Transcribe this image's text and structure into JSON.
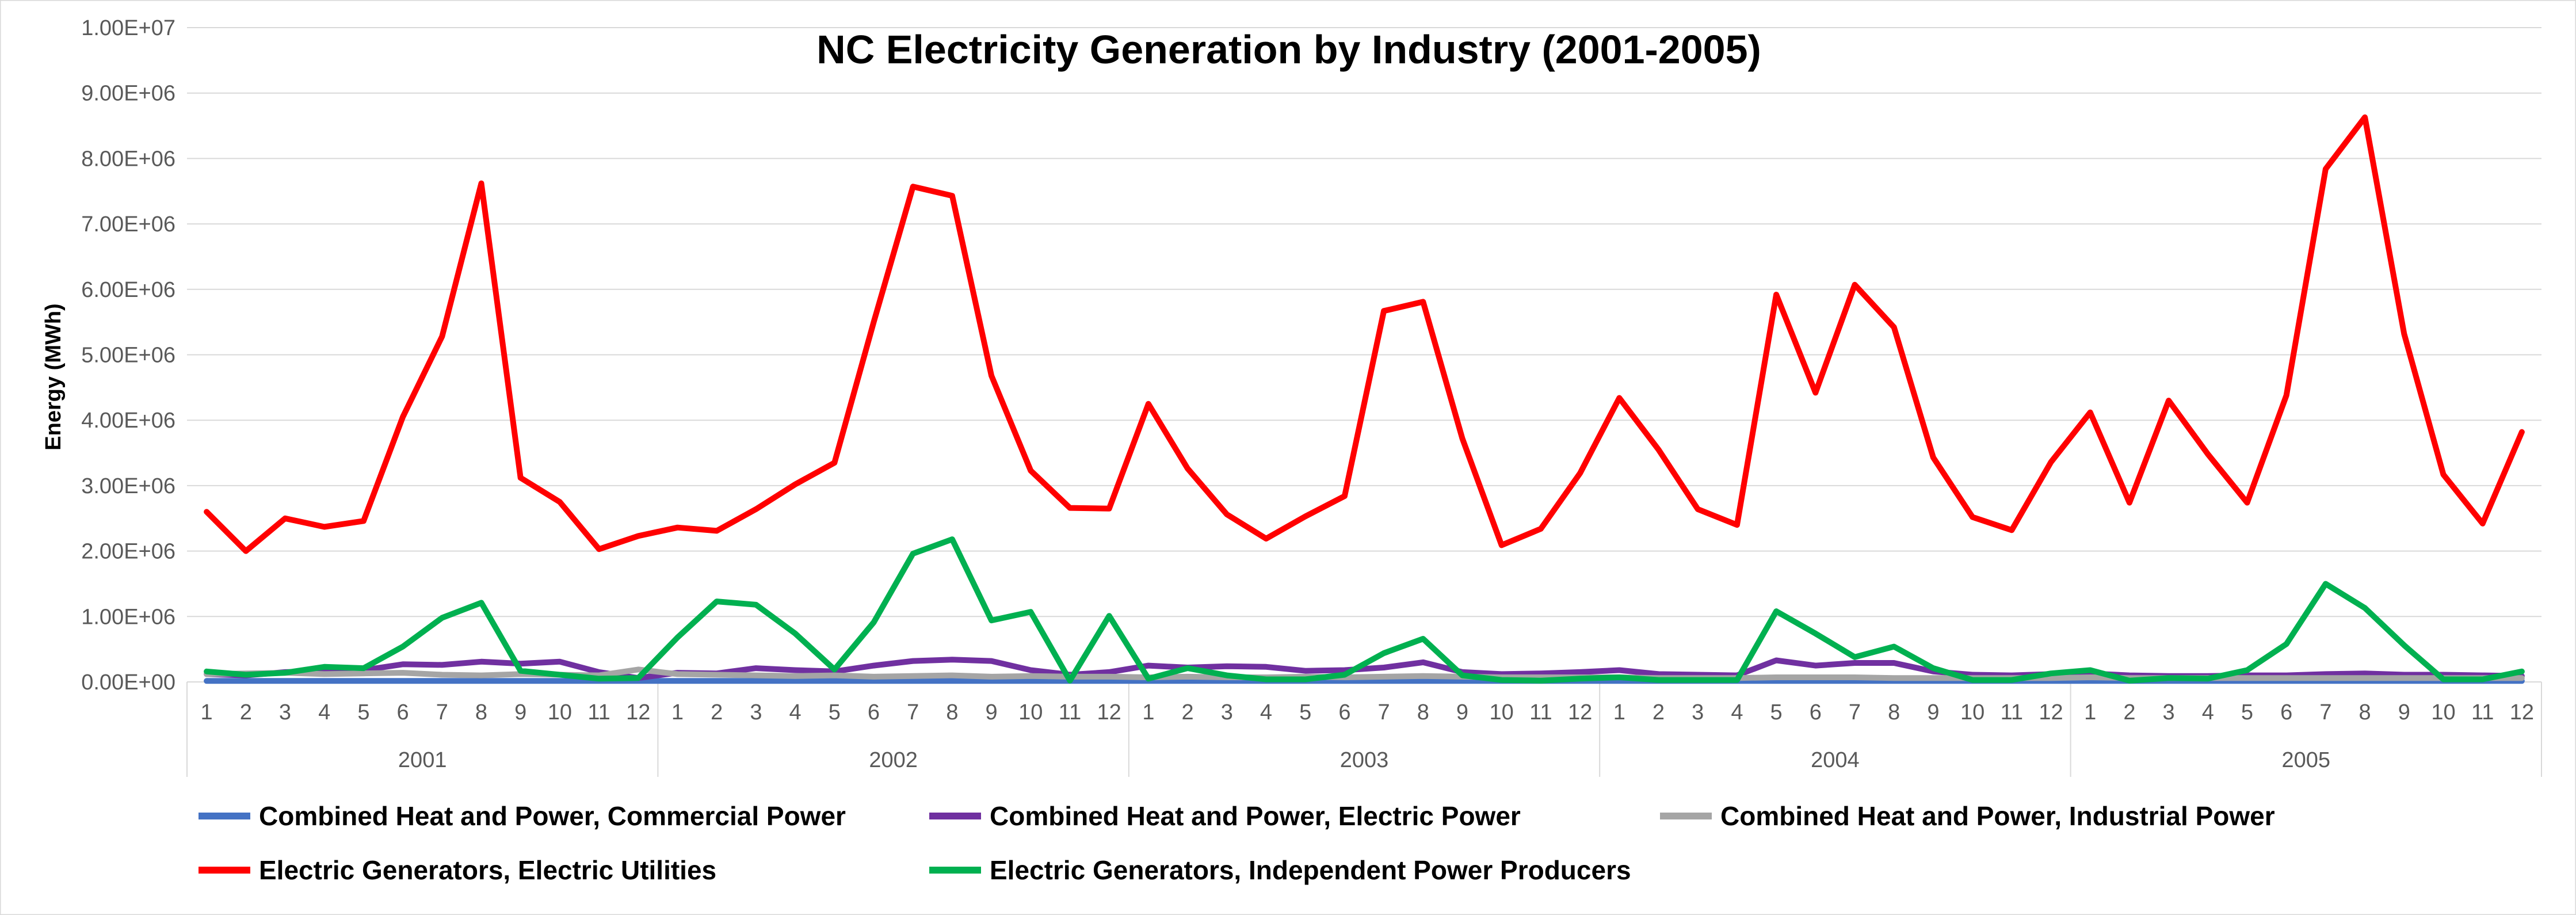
{
  "chart_data": {
    "type": "line",
    "title": "NC Electricity Generation by Industry (2001-2005)",
    "xlabel": "",
    "ylabel": "Energy (MWh)",
    "ylim": [
      0,
      10000000
    ],
    "yticks": [
      0,
      1000000,
      2000000,
      3000000,
      4000000,
      5000000,
      6000000,
      7000000,
      8000000,
      9000000,
      10000000
    ],
    "ytick_labels": [
      "0.00E+00",
      "1.00E+06",
      "2.00E+06",
      "3.00E+06",
      "4.00E+06",
      "5.00E+06",
      "6.00E+06",
      "7.00E+06",
      "8.00E+06",
      "9.00E+06",
      "1.00E+07"
    ],
    "years": [
      "2001",
      "2002",
      "2003",
      "2004",
      "2005"
    ],
    "months": [
      "1",
      "2",
      "3",
      "4",
      "5",
      "6",
      "7",
      "8",
      "9",
      "10",
      "11",
      "12"
    ],
    "grid": true,
    "legend_position": "bottom",
    "series": [
      {
        "name": "Combined Heat and Power, Commercial Power",
        "color": "#4472C4",
        "values": [
          15000,
          15000,
          15000,
          15000,
          15000,
          15000,
          15000,
          15000,
          15000,
          15000,
          15000,
          15000,
          15000,
          15000,
          15000,
          15000,
          15000,
          15000,
          15000,
          15000,
          15000,
          15000,
          15000,
          15000,
          15000,
          15000,
          15000,
          15000,
          15000,
          15000,
          15000,
          15000,
          15000,
          15000,
          15000,
          15000,
          15000,
          15000,
          15000,
          15000,
          15000,
          15000,
          15000,
          15000,
          15000,
          15000,
          15000,
          15000,
          15000,
          15000,
          15000,
          15000,
          15000,
          15000,
          15000,
          15000,
          15000,
          15000,
          15000,
          15000
        ]
      },
      {
        "name": "Combined Heat and Power, Electric Power",
        "color": "#7030A0",
        "values": [
          120000,
          100000,
          150000,
          160000,
          180000,
          270000,
          260000,
          310000,
          280000,
          310000,
          150000,
          60000,
          140000,
          130000,
          210000,
          180000,
          160000,
          250000,
          320000,
          340000,
          320000,
          180000,
          110000,
          150000,
          250000,
          220000,
          240000,
          230000,
          170000,
          180000,
          220000,
          300000,
          150000,
          120000,
          130000,
          150000,
          180000,
          120000,
          110000,
          100000,
          330000,
          250000,
          290000,
          290000,
          160000,
          110000,
          100000,
          120000,
          130000,
          100000,
          90000,
          90000,
          100000,
          100000,
          120000,
          130000,
          110000,
          110000,
          100000,
          90000
        ]
      },
      {
        "name": "Combined Heat and Power, Industrial Power",
        "color": "#A5A5A5",
        "values": [
          120000,
          130000,
          140000,
          120000,
          130000,
          140000,
          110000,
          100000,
          120000,
          110000,
          100000,
          190000,
          120000,
          110000,
          100000,
          90000,
          100000,
          80000,
          90000,
          100000,
          80000,
          90000,
          80000,
          80000,
          70000,
          80000,
          70000,
          70000,
          80000,
          70000,
          80000,
          90000,
          80000,
          70000,
          70000,
          70000,
          70000,
          60000,
          60000,
          60000,
          70000,
          70000,
          70000,
          60000,
          60000,
          60000,
          60000,
          60000,
          70000,
          60000,
          60000,
          60000,
          60000,
          60000,
          60000,
          60000,
          60000,
          60000,
          60000,
          60000
        ]
      },
      {
        "name": "Electric Generators, Electric Utilities",
        "color": "#FF0000",
        "values": [
          2600000,
          2000000,
          2500000,
          2370000,
          2460000,
          4050000,
          5280000,
          7620000,
          3120000,
          2750000,
          2030000,
          2230000,
          2360000,
          2310000,
          2640000,
          3020000,
          3350000,
          5500000,
          7570000,
          7430000,
          4680000,
          3230000,
          2660000,
          2650000,
          4250000,
          3260000,
          2560000,
          2190000,
          2530000,
          2840000,
          5670000,
          5810000,
          3720000,
          2090000,
          2340000,
          3190000,
          4340000,
          3550000,
          2640000,
          2400000,
          5920000,
          4420000,
          6070000,
          5420000,
          3430000,
          2520000,
          2320000,
          3360000,
          4120000,
          2740000,
          4300000,
          3480000,
          2740000,
          4380000,
          7840000,
          8630000,
          5320000,
          3170000,
          2420000,
          3820000
        ]
      },
      {
        "name": "Electric Generators, Independent Power Producers",
        "color": "#00B050",
        "values": [
          160000,
          110000,
          140000,
          230000,
          210000,
          540000,
          980000,
          1210000,
          170000,
          110000,
          50000,
          60000,
          680000,
          1230000,
          1180000,
          740000,
          190000,
          910000,
          1960000,
          2180000,
          940000,
          1070000,
          20000,
          1010000,
          50000,
          210000,
          100000,
          40000,
          40000,
          110000,
          440000,
          660000,
          100000,
          30000,
          20000,
          50000,
          70000,
          30000,
          30000,
          30000,
          1080000,
          740000,
          380000,
          540000,
          210000,
          30000,
          30000,
          130000,
          180000,
          20000,
          60000,
          50000,
          180000,
          580000,
          1500000,
          1130000,
          560000,
          40000,
          40000,
          160000
        ]
      }
    ]
  }
}
